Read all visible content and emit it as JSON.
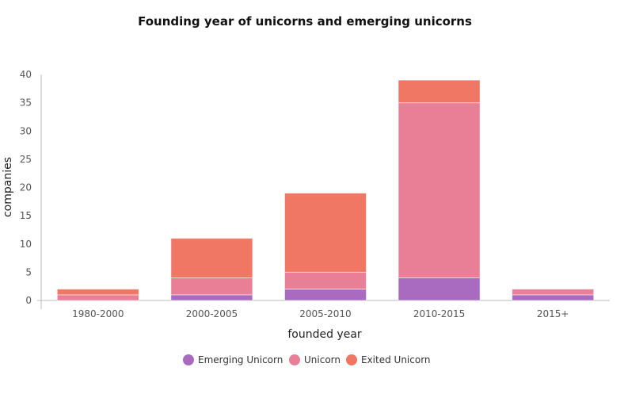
{
  "chart_data": {
    "type": "bar",
    "stacked": true,
    "title": "Founding year of unicorns and emerging unicorns",
    "xlabel": "founded year",
    "ylabel": "companies",
    "ylim": [
      0,
      40
    ],
    "yticks": [
      0,
      5,
      10,
      15,
      20,
      25,
      30,
      35,
      40
    ],
    "categories": [
      "1980-2000",
      "2000-2005",
      "2005-2010",
      "2010-2015",
      "2015+"
    ],
    "series": [
      {
        "name": "Emerging Unicorn",
        "color": "#a86bbf",
        "values": [
          0,
          1,
          2,
          4,
          1
        ]
      },
      {
        "name": "Unicorn",
        "color": "#e97f96",
        "values": [
          1,
          3,
          3,
          31,
          1
        ]
      },
      {
        "name": "Exited Unicorn",
        "color": "#f07763",
        "values": [
          1,
          7,
          14,
          4,
          0
        ]
      }
    ],
    "legend": "bottom-center",
    "grid": false
  }
}
